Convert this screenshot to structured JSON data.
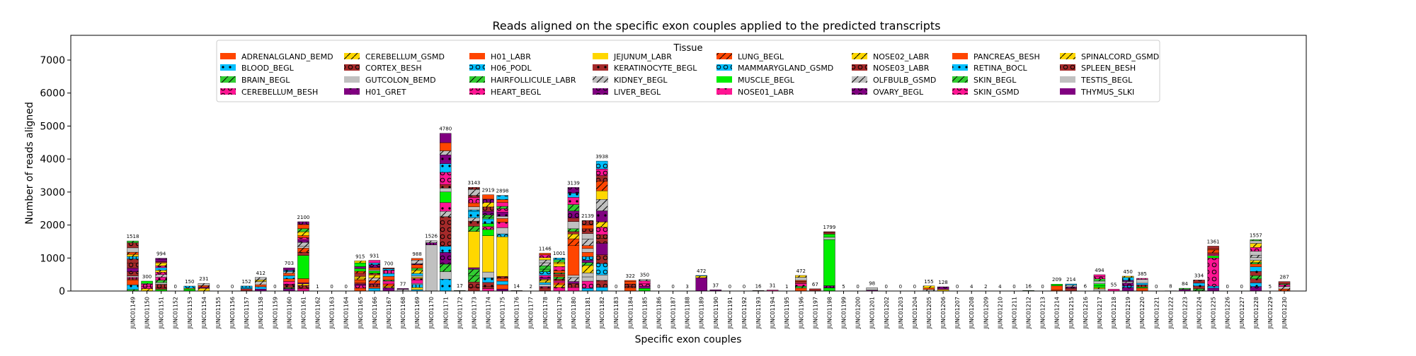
{
  "chart_data": {
    "type": "bar",
    "stacked": true,
    "title": "Reads aligned on the specific exon couples applied to the predicted transcripts",
    "xlabel": "Specific exon couples",
    "ylabel": "Number of reads aligned",
    "ylim": [
      0,
      7750
    ],
    "yticks": [
      0,
      1000,
      2000,
      3000,
      4000,
      5000,
      6000,
      7000
    ],
    "grid": false,
    "legend": {
      "title": "Tissue",
      "placement": "upper-center",
      "entries": [
        {
          "name": "ADRENALGLAND_BEMD",
          "color": "#FF4500",
          "pattern": "none"
        },
        {
          "name": "BLOOD_BEGL",
          "color": "#00BFFF",
          "pattern": "dot"
        },
        {
          "name": "BRAIN_BEGL",
          "color": "#32CD32",
          "pattern": "slash"
        },
        {
          "name": "CEREBELLUM_BESH",
          "color": "#FF1493",
          "pattern": "circle"
        },
        {
          "name": "CEREBELLUM_GSMD",
          "color": "#FFD700",
          "pattern": "slash"
        },
        {
          "name": "CORTEX_BESH",
          "color": "#A52A2A",
          "pattern": "circle"
        },
        {
          "name": "GUTCOLON_BEMD",
          "color": "#C0C0C0",
          "pattern": "none"
        },
        {
          "name": "H01_GRET",
          "color": "#800080",
          "pattern": "dot"
        },
        {
          "name": "H01_LABR",
          "color": "#FF4500",
          "pattern": "none"
        },
        {
          "name": "H06_PODL",
          "color": "#00BFFF",
          "pattern": "circle"
        },
        {
          "name": "HAIRFOLLICULE_LABR",
          "color": "#32CD32",
          "pattern": "slash"
        },
        {
          "name": "HEART_BEGL",
          "color": "#FF1493",
          "pattern": "circle"
        },
        {
          "name": "JEJUNUM_LABR",
          "color": "#FFD700",
          "pattern": "none"
        },
        {
          "name": "KERATINOCYTE_BEGL",
          "color": "#A52A2A",
          "pattern": "dot"
        },
        {
          "name": "KIDNEY_BEGL",
          "color": "#C0C0C0",
          "pattern": "slash"
        },
        {
          "name": "LIVER_BEGL",
          "color": "#800080",
          "pattern": "circle"
        },
        {
          "name": "LUNG_BEGL",
          "color": "#FF4500",
          "pattern": "slash"
        },
        {
          "name": "MAMMARYGLAND_GSMD",
          "color": "#00BFFF",
          "pattern": "circle"
        },
        {
          "name": "MUSCLE_BEGL",
          "color": "#00EE00",
          "pattern": "none"
        },
        {
          "name": "NOSE01_LABR",
          "color": "#FF1493",
          "pattern": "dot"
        },
        {
          "name": "NOSE02_LABR",
          "color": "#FFD700",
          "pattern": "slash"
        },
        {
          "name": "NOSE03_LABR",
          "color": "#A52A2A",
          "pattern": "circle"
        },
        {
          "name": "OLFBULB_GSMD",
          "color": "#C0C0C0",
          "pattern": "slash"
        },
        {
          "name": "OVARY_BEGL",
          "color": "#800080",
          "pattern": "circle"
        },
        {
          "name": "PANCREAS_BESH",
          "color": "#FF4500",
          "pattern": "none"
        },
        {
          "name": "RETINA_BOCL",
          "color": "#00BFFF",
          "pattern": "dot"
        },
        {
          "name": "SKIN_BEGL",
          "color": "#32CD32",
          "pattern": "slash"
        },
        {
          "name": "SKIN_GSMD",
          "color": "#FF1493",
          "pattern": "circle"
        },
        {
          "name": "SPINALCORD_GSMD",
          "color": "#FFD700",
          "pattern": "slash"
        },
        {
          "name": "SPLEEN_BESH",
          "color": "#A52A2A",
          "pattern": "circle"
        },
        {
          "name": "TESTIS_BEGL",
          "color": "#C0C0C0",
          "pattern": "none"
        },
        {
          "name": "THYMUS_SLKI",
          "color": "#800080",
          "pattern": "none"
        }
      ]
    },
    "categories": [
      "JUNC01149",
      "JUNC01150",
      "JUNC01151",
      "JUNC01152",
      "JUNC01153",
      "JUNC01154",
      "JUNC01155",
      "JUNC01156",
      "JUNC01157",
      "JUNC01158",
      "JUNC01159",
      "JUNC01160",
      "JUNC01161",
      "JUNC01162",
      "JUNC01163",
      "JUNC01164",
      "JUNC01165",
      "JUNC01166",
      "JUNC01167",
      "JUNC01168",
      "JUNC01169",
      "JUNC01170",
      "JUNC01171",
      "JUNC01172",
      "JUNC01173",
      "JUNC01174",
      "JUNC01175",
      "JUNC01176",
      "JUNC01177",
      "JUNC01178",
      "JUNC01179",
      "JUNC01180",
      "JUNC01181",
      "JUNC01182",
      "JUNC01183",
      "JUNC01184",
      "JUNC01185",
      "JUNC01186",
      "JUNC01187",
      "JUNC01188",
      "JUNC01189",
      "JUNC01190",
      "JUNC01191",
      "JUNC01192",
      "JUNC01193",
      "JUNC01194",
      "JUNC01195",
      "JUNC01196",
      "JUNC01197",
      "JUNC01198",
      "JUNC01199",
      "JUNC01200",
      "JUNC01201",
      "JUNC01202",
      "JUNC01203",
      "JUNC01204",
      "JUNC01205",
      "JUNC01206",
      "JUNC01207",
      "JUNC01208",
      "JUNC01209",
      "JUNC01210",
      "JUNC01211",
      "JUNC01212",
      "JUNC01213",
      "JUNC01214",
      "JUNC01215",
      "JUNC01216",
      "JUNC01217",
      "JUNC01218",
      "JUNC01219",
      "JUNC01220",
      "JUNC01221",
      "JUNC01222",
      "JUNC01223",
      "JUNC01224",
      "JUNC01225",
      "JUNC01226",
      "JUNC01227",
      "JUNC01228",
      "JUNC01229",
      "JUNC01230"
    ],
    "totals": [
      1518,
      300,
      994,
      0,
      150,
      231,
      0,
      0,
      152,
      412,
      0,
      703,
      2100,
      1,
      0,
      0,
      915,
      931,
      700,
      77,
      988,
      1526,
      4780,
      17,
      3143,
      2919,
      2898,
      14,
      2,
      1146,
      1001,
      3139,
      2139,
      3938,
      0,
      322,
      350,
      0,
      0,
      3,
      472,
      37,
      0,
      0,
      16,
      31,
      1,
      472,
      67,
      1799,
      5,
      0,
      98,
      0,
      0,
      0,
      155,
      128,
      0,
      4,
      2,
      4,
      0,
      16,
      0,
      209,
      214,
      6,
      494,
      55,
      450,
      385,
      0,
      8,
      84,
      334,
      1361,
      0,
      0,
      1557,
      5,
      287
    ],
    "dominant_segments": [
      {
        "category": "JUNC01161",
        "tissue": "MUSCLE_BEGL",
        "value": 700
      },
      {
        "category": "JUNC01170",
        "tissue": "GUTCOLON_BEMD",
        "value": 1400
      },
      {
        "category": "JUNC01171",
        "tissue": "CORTEX_BESH",
        "value": 900
      },
      {
        "category": "JUNC01173",
        "tissue": "JEJUNUM_LABR",
        "value": 1100
      },
      {
        "category": "JUNC01174",
        "tissue": "JEJUNUM_LABR",
        "value": 1100
      },
      {
        "category": "JUNC01175",
        "tissue": "JEJUNUM_LABR",
        "value": 1200
      },
      {
        "category": "JUNC01180",
        "tissue": "ADRENALGLAND_BEMD",
        "value": 900
      },
      {
        "category": "JUNC01182",
        "tissue": "THYMUS_SLKI",
        "value": 350
      },
      {
        "category": "JUNC01189",
        "tissue": "THYMUS_SLKI",
        "value": 400
      },
      {
        "category": "JUNC01198",
        "tissue": "MUSCLE_BEGL",
        "value": 1400
      },
      {
        "category": "JUNC01225",
        "tissue": "CEREBELLUM_BESH",
        "value": 850
      }
    ]
  }
}
